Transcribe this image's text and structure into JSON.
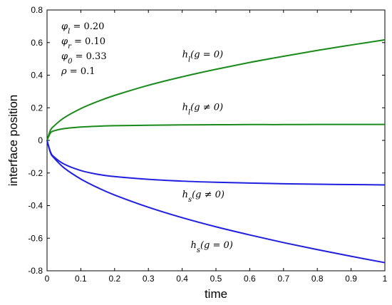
{
  "chart_data": {
    "type": "line",
    "xlabel": "time",
    "ylabel": "interface position",
    "xlim": [
      0,
      1
    ],
    "ylim": [
      -0.8,
      0.8
    ],
    "grid": false,
    "x_ticks": [
      "0",
      "0.1",
      "0.2",
      "0.3",
      "0.4",
      "0.5",
      "0.6",
      "0.7",
      "0.8",
      "0.9",
      "1"
    ],
    "y_ticks": [
      "0.8",
      "0.6",
      "0.4",
      "0.2",
      "0",
      "-0.2",
      "-0.4",
      "-0.6",
      "-0.8"
    ],
    "x": [
      0,
      0.01,
      0.02,
      0.05,
      0.1,
      0.15,
      0.2,
      0.3,
      0.4,
      0.5,
      0.6,
      0.7,
      0.8,
      0.9,
      1.0
    ],
    "series": [
      {
        "name": "h_l(g = 0)",
        "color": "#1a8a1a",
        "values": [
          0.0,
          0.062,
          0.087,
          0.138,
          0.195,
          0.239,
          0.276,
          0.338,
          0.39,
          0.436,
          0.478,
          0.516,
          0.552,
          0.585,
          0.617
        ]
      },
      {
        "name": "h_l(g ≠ 0)",
        "color": "#1a8a1a",
        "values": [
          0.0,
          0.045,
          0.058,
          0.072,
          0.082,
          0.087,
          0.09,
          0.093,
          0.095,
          0.096,
          0.097,
          0.097,
          0.098,
          0.098,
          0.098
        ]
      },
      {
        "name": "h_s(g ≠ 0)",
        "color": "#1f1fe0",
        "values": [
          0.0,
          -0.07,
          -0.1,
          -0.145,
          -0.185,
          -0.208,
          -0.222,
          -0.239,
          -0.25,
          -0.257,
          -0.262,
          -0.266,
          -0.269,
          -0.271,
          -0.273
        ]
      },
      {
        "name": "h_s(g = 0)",
        "color": "#1f1fe0",
        "values": [
          0.0,
          -0.075,
          -0.106,
          -0.168,
          -0.237,
          -0.29,
          -0.335,
          -0.41,
          -0.474,
          -0.53,
          -0.58,
          -0.627,
          -0.67,
          -0.711,
          -0.75
        ]
      }
    ],
    "annotations": [
      {
        "parts": [
          {
            "t": "h"
          },
          {
            "t": "l",
            "sub": true
          },
          {
            "t": "(g = 0)"
          }
        ],
        "x": 0.4,
        "y": 0.51
      },
      {
        "parts": [
          {
            "t": "h"
          },
          {
            "t": "l",
            "sub": true
          },
          {
            "t": "(g ≠ 0)"
          }
        ],
        "x": 0.4,
        "y": 0.185
      },
      {
        "parts": [
          {
            "t": "h"
          },
          {
            "t": "s",
            "sub": true
          },
          {
            "t": "(g ≠ 0)"
          }
        ],
        "x": 0.4,
        "y": -0.35
      },
      {
        "parts": [
          {
            "t": "h"
          },
          {
            "t": "s",
            "sub": true
          },
          {
            "t": "(g = 0)"
          }
        ],
        "x": 0.425,
        "y": -0.66
      }
    ],
    "parameters": [
      {
        "sym": "φ",
        "sub": "l",
        "rest": " = 0.20"
      },
      {
        "sym": "φ",
        "sub": "r",
        "rest": " = 0.10"
      },
      {
        "sym": "φ",
        "sub": "0",
        "rest": " = 0.33"
      },
      {
        "sym": "ρ",
        "sub": "",
        "rest": " = 0.1"
      }
    ]
  }
}
